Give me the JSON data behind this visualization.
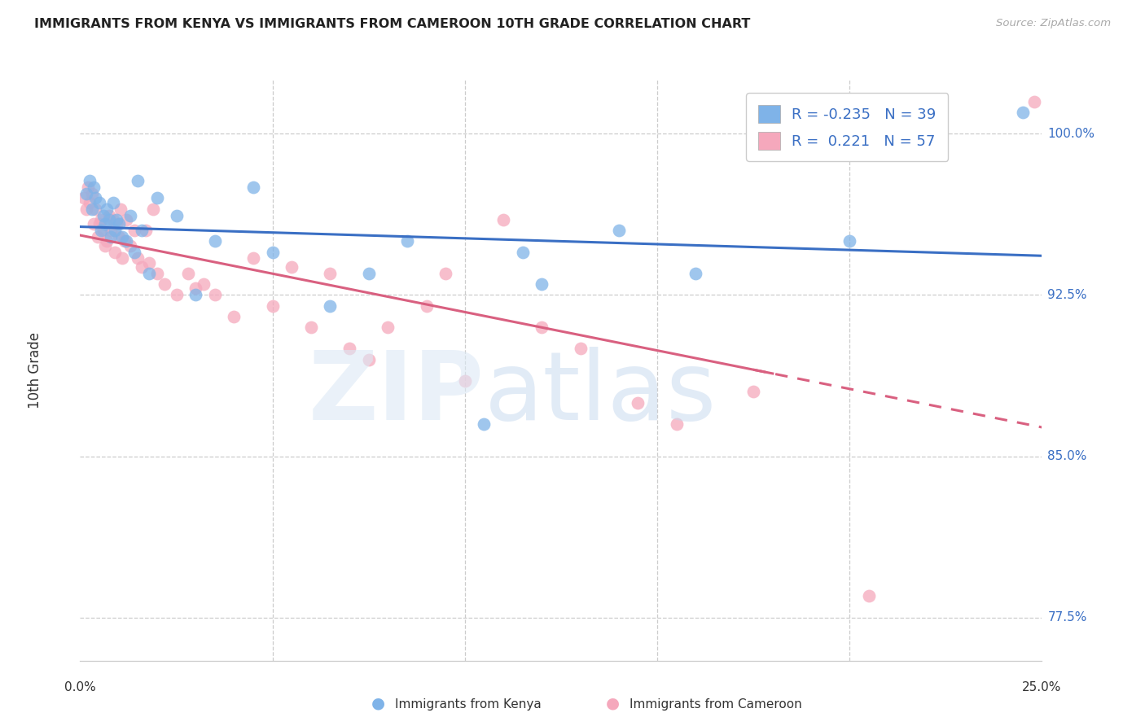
{
  "title": "IMMIGRANTS FROM KENYA VS IMMIGRANTS FROM CAMEROON 10TH GRADE CORRELATION CHART",
  "source": "Source: ZipAtlas.com",
  "ylabel": "10th Grade",
  "xlim": [
    0.0,
    25.0
  ],
  "ylim": [
    75.5,
    102.5
  ],
  "ytick_values": [
    77.5,
    85.0,
    92.5,
    100.0
  ],
  "kenya_R": -0.235,
  "kenya_N": 39,
  "cameroon_R": 0.221,
  "cameroon_N": 57,
  "kenya_color": "#7fb3e8",
  "cameroon_color": "#f5a8bc",
  "kenya_line_color": "#3a6fc4",
  "cameroon_line_color": "#d96080",
  "kenya_points_x": [
    0.15,
    0.25,
    0.3,
    0.35,
    0.4,
    0.5,
    0.55,
    0.6,
    0.65,
    0.7,
    0.75,
    0.8,
    0.85,
    0.9,
    0.95,
    1.0,
    1.1,
    1.2,
    1.3,
    1.4,
    1.5,
    1.6,
    1.8,
    2.0,
    2.5,
    3.0,
    3.5,
    4.5,
    5.0,
    6.5,
    7.5,
    8.5,
    10.5,
    11.5,
    12.0,
    14.0,
    16.0,
    20.0,
    24.5
  ],
  "kenya_points_y": [
    97.2,
    97.8,
    96.5,
    97.5,
    97.0,
    96.8,
    95.5,
    96.2,
    95.8,
    96.5,
    96.0,
    95.2,
    96.8,
    95.5,
    96.0,
    95.8,
    95.2,
    95.0,
    96.2,
    94.5,
    97.8,
    95.5,
    93.5,
    97.0,
    96.2,
    92.5,
    95.0,
    97.5,
    94.5,
    92.0,
    93.5,
    95.0,
    86.5,
    94.5,
    93.0,
    95.5,
    93.5,
    95.0,
    101.0
  ],
  "cameroon_points_x": [
    0.1,
    0.15,
    0.2,
    0.25,
    0.3,
    0.35,
    0.4,
    0.45,
    0.5,
    0.55,
    0.6,
    0.65,
    0.7,
    0.75,
    0.8,
    0.85,
    0.9,
    0.95,
    1.0,
    1.05,
    1.1,
    1.15,
    1.2,
    1.3,
    1.4,
    1.5,
    1.6,
    1.7,
    1.8,
    1.9,
    2.0,
    2.2,
    2.5,
    2.8,
    3.0,
    3.2,
    3.5,
    4.0,
    4.5,
    5.0,
    5.5,
    6.0,
    6.5,
    7.0,
    7.5,
    8.0,
    9.0,
    9.5,
    10.0,
    11.0,
    12.0,
    13.0,
    14.5,
    15.5,
    17.5,
    20.5,
    24.8
  ],
  "cameroon_points_y": [
    97.0,
    96.5,
    97.5,
    96.8,
    97.2,
    95.8,
    96.5,
    95.2,
    95.8,
    96.0,
    95.5,
    94.8,
    95.0,
    96.2,
    95.5,
    96.0,
    94.5,
    95.8,
    95.2,
    96.5,
    94.2,
    95.0,
    96.0,
    94.8,
    95.5,
    94.2,
    93.8,
    95.5,
    94.0,
    96.5,
    93.5,
    93.0,
    92.5,
    93.5,
    92.8,
    93.0,
    92.5,
    91.5,
    94.2,
    92.0,
    93.8,
    91.0,
    93.5,
    90.0,
    89.5,
    91.0,
    92.0,
    93.5,
    88.5,
    96.0,
    91.0,
    90.0,
    87.5,
    86.5,
    88.0,
    78.5,
    101.5
  ]
}
